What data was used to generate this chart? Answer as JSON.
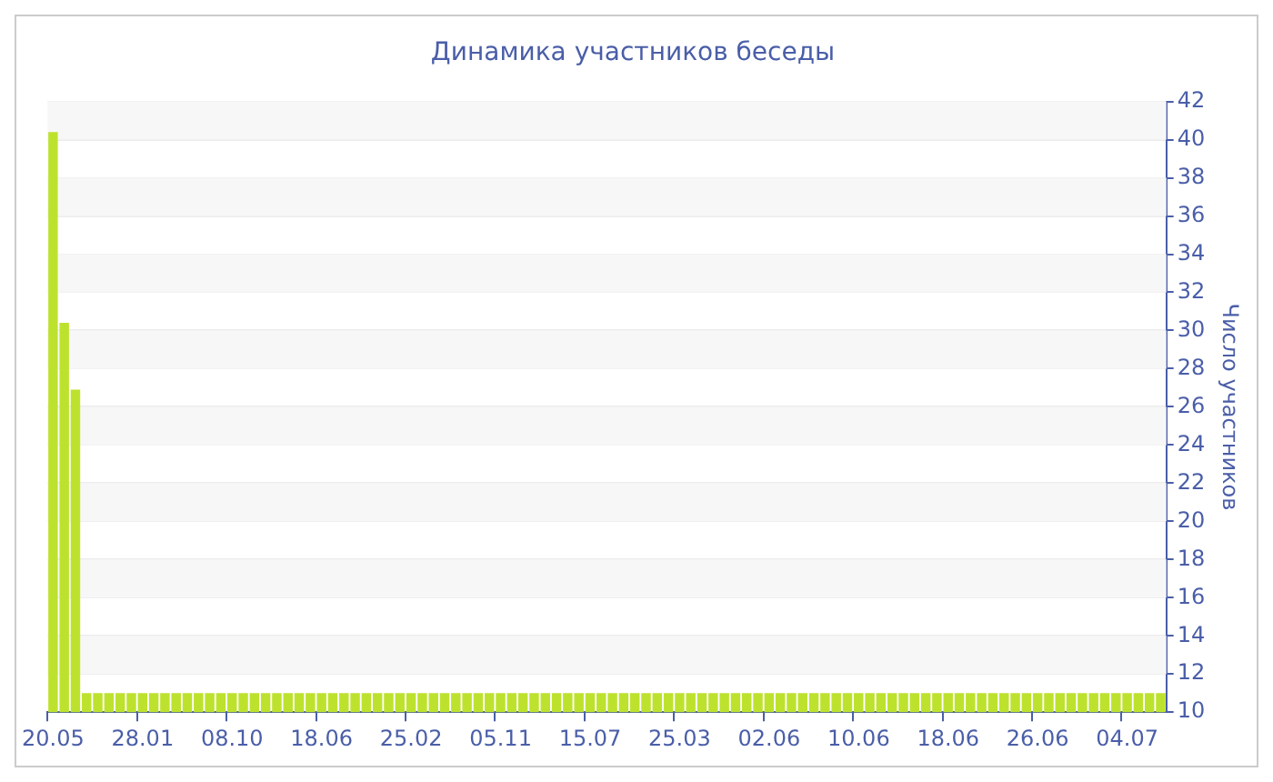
{
  "chart_data": {
    "type": "bar",
    "title": "Динамика участников беседы",
    "ylabel": "Число участников",
    "categories": [
      "20.05",
      null,
      null,
      null,
      null,
      null,
      null,
      null,
      "28.01",
      null,
      null,
      null,
      null,
      null,
      null,
      null,
      "08.10",
      null,
      null,
      null,
      null,
      null,
      null,
      null,
      "18.06",
      null,
      null,
      null,
      null,
      null,
      null,
      null,
      "25.02",
      null,
      null,
      null,
      null,
      null,
      null,
      null,
      "05.11",
      null,
      null,
      null,
      null,
      null,
      null,
      null,
      "15.07",
      null,
      null,
      null,
      null,
      null,
      null,
      null,
      "25.03",
      null,
      null,
      null,
      null,
      null,
      null,
      null,
      "02.06",
      null,
      null,
      null,
      null,
      null,
      null,
      null,
      "10.06",
      null,
      null,
      null,
      null,
      null,
      null,
      null,
      "18.06",
      null,
      null,
      null,
      null,
      null,
      null,
      null,
      "26.06",
      null,
      null,
      null,
      null,
      null,
      null,
      null,
      "04.07",
      null,
      null,
      null
    ],
    "values": [
      40.4,
      30.4,
      26.9,
      11,
      11,
      11,
      11,
      11,
      11,
      11,
      11,
      11,
      11,
      11,
      11,
      11,
      11,
      11,
      11,
      11,
      11,
      11,
      11,
      11,
      11,
      11,
      11,
      11,
      11,
      11,
      11,
      11,
      11,
      11,
      11,
      11,
      11,
      11,
      11,
      11,
      11,
      11,
      11,
      11,
      11,
      11,
      11,
      11,
      11,
      11,
      11,
      11,
      11,
      11,
      11,
      11,
      11,
      11,
      11,
      11,
      11,
      11,
      11,
      11,
      11,
      11,
      11,
      11,
      11,
      11,
      11,
      11,
      11,
      11,
      11,
      11,
      11,
      11,
      11,
      11,
      11,
      11,
      11,
      11,
      11,
      11,
      11,
      11,
      11,
      11,
      11,
      11,
      11,
      11,
      11,
      11,
      11,
      11,
      11,
      11
    ],
    "color": "#bde22e",
    "ylim": [
      10,
      42
    ],
    "yticks": [
      10,
      12,
      14,
      16,
      18,
      20,
      22,
      24,
      26,
      28,
      30,
      32,
      34,
      36,
      38,
      40,
      42
    ],
    "grid": "y",
    "legend": false
  }
}
